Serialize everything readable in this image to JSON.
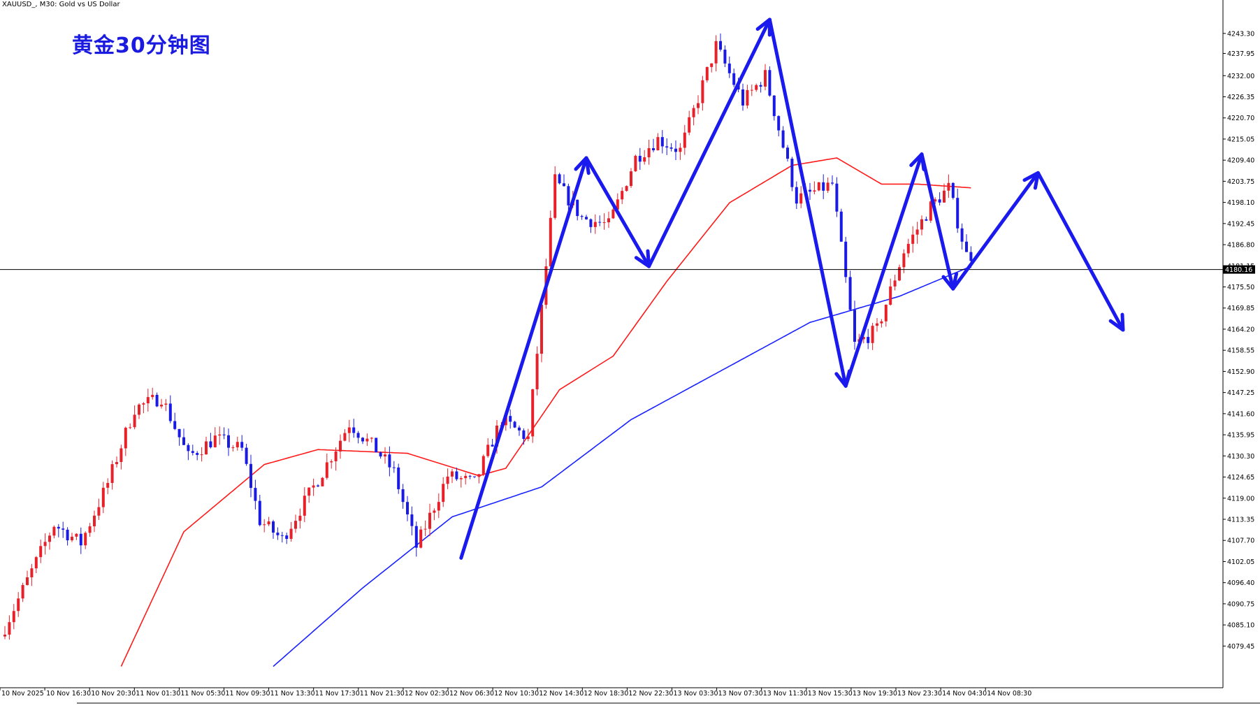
{
  "header": {
    "symbol_label": "XAUUSD_, M30:  Gold vs US Dollar",
    "title": "黄金30分钟图"
  },
  "colors": {
    "bull": "#e8202a",
    "bear": "#1a1ae6",
    "ma_fast": "#ff1a1a",
    "ma_slow": "#1a22ff",
    "arrows": "#1a1aee",
    "price_line": "#000000"
  },
  "chart_data": {
    "type": "candlestick",
    "timeframe": "M30",
    "symbol": "XAUUSD_",
    "ylim": [
      4074.0,
      4248.5
    ],
    "y_ticks": [
      "4243.30",
      "4237.95",
      "4232.00",
      "4226.35",
      "4220.70",
      "4215.05",
      "4209.40",
      "4203.75",
      "4198.10",
      "4192.45",
      "4186.80",
      "4181.15",
      "4175.50",
      "4169.85",
      "4164.20",
      "4158.55",
      "4152.90",
      "4147.25",
      "4141.60",
      "4135.95",
      "4130.30",
      "4124.65",
      "4119.00",
      "4113.35",
      "4107.70",
      "4102.05",
      "4096.40",
      "4090.75",
      "4085.10",
      "4079.45"
    ],
    "x_ticks": [
      "10 Nov 2025",
      "10 Nov 16:30",
      "10 Nov 20:30",
      "11 Nov 01:30",
      "11 Nov 05:30",
      "11 Nov 09:30",
      "11 Nov 13:30",
      "11 Nov 17:30",
      "11 Nov 21:30",
      "12 Nov 02:30",
      "12 Nov 06:30",
      "12 Nov 10:30",
      "12 Nov 14:30",
      "12 Nov 18:30",
      "12 Nov 22:30",
      "13 Nov 03:30",
      "13 Nov 07:30",
      "13 Nov 11:30",
      "13 Nov 15:30",
      "13 Nov 19:30",
      "13 Nov 23:30",
      "14 Nov 04:30",
      "14 Nov 08:30"
    ],
    "current_price": "4180.16",
    "current_price_value": 4180.16,
    "waypoints": [
      [
        0,
        4082
      ],
      [
        6,
        4097
      ],
      [
        12,
        4112
      ],
      [
        18,
        4107
      ],
      [
        24,
        4123
      ],
      [
        30,
        4143
      ],
      [
        36,
        4146
      ],
      [
        42,
        4130
      ],
      [
        48,
        4135
      ],
      [
        54,
        4132
      ],
      [
        58,
        4113
      ],
      [
        63,
        4108
      ],
      [
        72,
        4126
      ],
      [
        78,
        4139
      ],
      [
        84,
        4132
      ],
      [
        88,
        4126
      ],
      [
        93,
        4106
      ],
      [
        100,
        4125
      ],
      [
        106,
        4123
      ],
      [
        112,
        4140
      ],
      [
        118,
        4135
      ],
      [
        124,
        4204
      ],
      [
        130,
        4194
      ],
      [
        136,
        4192
      ],
      [
        142,
        4210
      ],
      [
        147,
        4215
      ],
      [
        152,
        4212
      ],
      [
        160,
        4240
      ],
      [
        166,
        4225
      ],
      [
        171,
        4232
      ],
      [
        178,
        4199
      ],
      [
        186,
        4203
      ],
      [
        191,
        4160
      ],
      [
        196,
        4164
      ],
      [
        202,
        4185
      ],
      [
        208,
        4197
      ],
      [
        212,
        4202
      ],
      [
        216,
        4184
      ]
    ],
    "ma_fast_waypoints": [
      [
        26,
        4074
      ],
      [
        40,
        4110
      ],
      [
        58,
        4128
      ],
      [
        70,
        4132
      ],
      [
        90,
        4131
      ],
      [
        106,
        4125
      ],
      [
        112,
        4127
      ],
      [
        124,
        4148
      ],
      [
        136,
        4157
      ],
      [
        148,
        4177
      ],
      [
        162,
        4198
      ],
      [
        176,
        4208
      ],
      [
        186,
        4210
      ],
      [
        196,
        4203
      ],
      [
        204,
        4203
      ],
      [
        216,
        4202
      ]
    ],
    "ma_slow_waypoints": [
      [
        60,
        4074
      ],
      [
        80,
        4095
      ],
      [
        100,
        4114
      ],
      [
        120,
        4122
      ],
      [
        140,
        4140
      ],
      [
        160,
        4153
      ],
      [
        180,
        4166
      ],
      [
        200,
        4173
      ],
      [
        216,
        4181
      ]
    ],
    "projection_arrows": [
      [
        [
          102,
          4103
        ],
        [
          130,
          4210
        ]
      ],
      [
        [
          130,
          4210
        ],
        [
          144,
          4181
        ]
      ],
      [
        [
          144,
          4181
        ],
        [
          171,
          4247
        ]
      ],
      [
        [
          171,
          4247
        ],
        [
          188,
          4149
        ]
      ],
      [
        [
          188,
          4149
        ],
        [
          205,
          4211
        ]
      ],
      [
        [
          205,
          4211
        ],
        [
          212,
          4175
        ]
      ],
      [
        [
          212,
          4175
        ],
        [
          231,
          4206
        ]
      ],
      [
        [
          231,
          4206
        ],
        [
          250,
          4164
        ]
      ]
    ]
  }
}
